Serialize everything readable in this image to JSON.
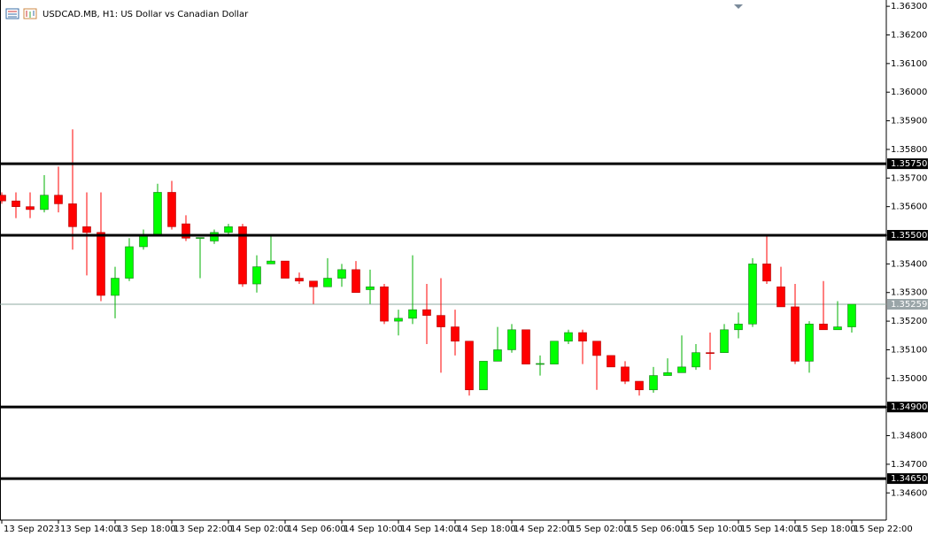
{
  "chart_data": {
    "type": "candlestick",
    "title": "USDCAD.MB, H1:  US Dollar vs Canadian Dollar",
    "categories": [
      "13 Sep 2023",
      null,
      null,
      null,
      "13 Sep 14:00",
      null,
      null,
      null,
      "13 Sep 18:00",
      null,
      null,
      null,
      "13 Sep 22:00",
      null,
      null,
      null,
      "14 Sep 02:00",
      null,
      null,
      null,
      "14 Sep 06:00",
      null,
      null,
      null,
      "14 Sep 10:00",
      null,
      null,
      null,
      "14 Sep 14:00",
      null,
      null,
      null,
      "14 Sep 18:00",
      null,
      null,
      null,
      "14 Sep 22:00",
      null,
      null,
      null,
      "15 Sep 02:00",
      null,
      null,
      null,
      "15 Sep 06:00",
      null,
      null,
      null,
      "15 Sep 10:00",
      null,
      null,
      null,
      "15 Sep 14:00",
      null,
      null,
      null,
      "15 Sep 18:00",
      null,
      null,
      null,
      "15 Sep 22:00"
    ],
    "open": [
      1.3564,
      1.3562,
      1.356,
      1.3559,
      1.3564,
      1.3561,
      1.3553,
      1.3551,
      1.3529,
      1.3535,
      1.3546,
      1.355,
      1.3565,
      1.3554,
      1.3549,
      1.3548,
      1.3551,
      1.3553,
      1.3533,
      1.354,
      1.3541,
      1.3535,
      1.3534,
      1.3532,
      1.3535,
      1.3538,
      1.3531,
      1.3532,
      1.352,
      1.3521,
      1.3524,
      1.3522,
      1.3518,
      1.3513,
      1.3496,
      1.3506,
      1.351,
      1.3517,
      1.3505,
      1.3505,
      1.3513,
      1.3516,
      1.3513,
      1.3508,
      1.3504,
      1.3499,
      1.3496,
      1.3501,
      1.3502,
      1.3504,
      1.3509,
      1.3509,
      1.3517,
      1.3519,
      1.354,
      1.3532,
      1.3525,
      1.3506,
      1.3519,
      1.3517,
      1.3518
    ],
    "high": [
      1.3565,
      1.3565,
      1.3565,
      1.3571,
      1.3574,
      1.3587,
      1.3565,
      1.3565,
      1.3539,
      1.3549,
      1.3552,
      1.3568,
      1.3569,
      1.3557,
      1.3549,
      1.3552,
      1.3554,
      1.3554,
      1.3543,
      1.355,
      1.3541,
      1.3537,
      1.3534,
      1.3542,
      1.354,
      1.3541,
      1.3538,
      1.3533,
      1.3524,
      1.3543,
      1.3533,
      1.3535,
      1.3524,
      1.3513,
      1.3506,
      1.3518,
      1.3519,
      1.3517,
      1.3508,
      1.3513,
      1.3517,
      1.3517,
      1.3513,
      1.3508,
      1.3506,
      1.3499,
      1.3504,
      1.3507,
      1.3515,
      1.3512,
      1.3516,
      1.3519,
      1.3523,
      1.3542,
      1.355,
      1.3539,
      1.3533,
      1.352,
      1.3534,
      1.3527,
      1.35259
    ],
    "low": [
      1.3561,
      1.3556,
      1.3556,
      1.3558,
      1.3558,
      1.3545,
      1.3536,
      1.3527,
      1.3521,
      1.3534,
      1.3545,
      1.355,
      1.3552,
      1.3548,
      1.3535,
      1.3547,
      1.355,
      1.3532,
      1.353,
      1.354,
      1.3535,
      1.3533,
      1.3526,
      1.3532,
      1.3532,
      1.353,
      1.3526,
      1.3519,
      1.3515,
      1.3519,
      1.3512,
      1.3502,
      1.3508,
      1.3494,
      1.3496,
      1.3506,
      1.3509,
      1.3505,
      1.3501,
      1.3505,
      1.3512,
      1.3505,
      1.3496,
      1.3504,
      1.3498,
      1.3494,
      1.3495,
      1.3501,
      1.3502,
      1.3503,
      1.3503,
      1.3509,
      1.3514,
      1.3518,
      1.3533,
      1.3525,
      1.3505,
      1.3502,
      1.3517,
      1.3517,
      1.3516
    ],
    "close": [
      1.3562,
      1.356,
      1.3559,
      1.3564,
      1.3561,
      1.3553,
      1.3551,
      1.3529,
      1.3535,
      1.3546,
      1.355,
      1.3565,
      1.3553,
      1.3549,
      1.35492,
      1.3551,
      1.3553,
      1.3533,
      1.3539,
      1.3541,
      1.3535,
      1.3534,
      1.3532,
      1.3535,
      1.3538,
      1.353,
      1.3532,
      1.352,
      1.3521,
      1.3524,
      1.3522,
      1.3518,
      1.3513,
      1.3496,
      1.3506,
      1.351,
      1.3517,
      1.3505,
      1.35052,
      1.3513,
      1.3516,
      1.3513,
      1.3508,
      1.3504,
      1.3499,
      1.3496,
      1.3501,
      1.3502,
      1.3504,
      1.3509,
      1.35088,
      1.3517,
      1.3519,
      1.354,
      1.3534,
      1.3525,
      1.3506,
      1.3519,
      1.3517,
      1.3518,
      1.35259
    ],
    "up_color": "#00ff00",
    "down_color": "#ff0000",
    "ylim": [
      1.34505,
      1.36322
    ],
    "yticks": [
      {
        "value": 1.363,
        "label": "1.36300"
      },
      {
        "value": 1.362,
        "label": "1.36200"
      },
      {
        "value": 1.361,
        "label": "1.36100"
      },
      {
        "value": 1.36,
        "label": "1.36000"
      },
      {
        "value": 1.359,
        "label": "1.35900"
      },
      {
        "value": 1.358,
        "label": "1.35800"
      },
      {
        "value": 1.357,
        "label": "1.35700"
      },
      {
        "value": 1.356,
        "label": "1.35600"
      },
      {
        "value": 1.355,
        "label": "1.35500"
      },
      {
        "value": 1.354,
        "label": "1.35400"
      },
      {
        "value": 1.353,
        "label": "1.35300"
      },
      {
        "value": 1.352,
        "label": "1.35200"
      },
      {
        "value": 1.351,
        "label": "1.35100"
      },
      {
        "value": 1.35,
        "label": "1.35000"
      },
      {
        "value": 1.349,
        "label": "1.34900"
      },
      {
        "value": 1.348,
        "label": "1.34800"
      },
      {
        "value": 1.347,
        "label": "1.34700"
      },
      {
        "value": 1.346,
        "label": "1.34600"
      }
    ],
    "levels": [
      {
        "value": 1.3575,
        "label": "1.35750"
      },
      {
        "value": 1.355,
        "label": "1.35500"
      },
      {
        "value": 1.349,
        "label": "1.34900"
      },
      {
        "value": 1.3465,
        "label": "1.34650"
      }
    ],
    "last_price": {
      "value": 1.35259,
      "label": "1.35259"
    },
    "grid": false
  }
}
